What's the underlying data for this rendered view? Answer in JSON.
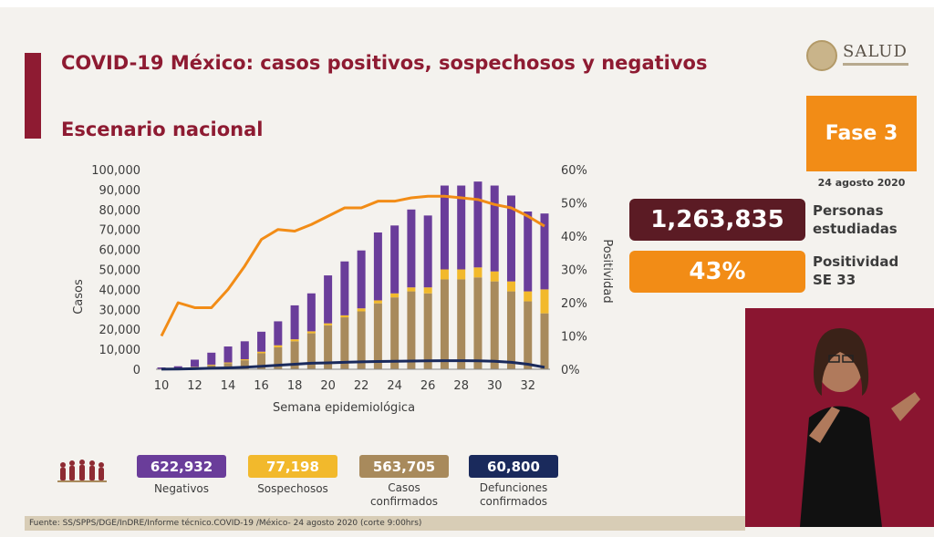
{
  "header": {
    "title": "COVID-19 México: casos positivos, sospechosos y negativos",
    "subtitle": "Escenario nacional"
  },
  "logo": {
    "name": "SALUD"
  },
  "phase": {
    "label": "Fase 3",
    "date": "24 agosto 2020"
  },
  "stats": [
    {
      "value": "1,263,835",
      "label_line1": "Personas",
      "label_line2": "estudiadas",
      "color": "#5b1b24"
    },
    {
      "value": "43%",
      "label_line1": "Positividad",
      "label_line2": "SE 33",
      "color": "#f28c16"
    }
  ],
  "legend": [
    {
      "value": "622,932",
      "label_line1": "Negativos",
      "label_line2": "",
      "color": "#6a3d9a"
    },
    {
      "value": "77,198",
      "label_line1": "Sospechosos",
      "label_line2": "",
      "color": "#f2b92c"
    },
    {
      "value": "563,705",
      "label_line1": "Casos",
      "label_line2": "confirmados",
      "color": "#a88a5c"
    },
    {
      "value": "60,800",
      "label_line1": "Defunciones",
      "label_line2": "confirmados",
      "color": "#1a2a5c"
    }
  ],
  "footer": {
    "source": "Fuente: SS/SPPS/DGE/InDRE/Informe técnico.COVID-19 /México- 24 agosto 2020 (corte 9:00hrs)"
  },
  "chart_data": {
    "type": "bar",
    "stacked": true,
    "xlabel": "Semana epidemiológica",
    "ylabel": "Casos",
    "y2label": "Positividad",
    "ylim": [
      0,
      100000
    ],
    "y2lim": [
      0,
      60
    ],
    "yticks": [
      "0",
      "10,000",
      "20,000",
      "30,000",
      "40,000",
      "50,000",
      "60,000",
      "70,000",
      "80,000",
      "90,000",
      "100,000"
    ],
    "y2ticks": [
      "0%",
      "10%",
      "20%",
      "30%",
      "40%",
      "50%",
      "60%"
    ],
    "xticks": [
      "10",
      "12",
      "14",
      "16",
      "18",
      "20",
      "22",
      "24",
      "26",
      "28",
      "30",
      "32"
    ],
    "x": [
      10,
      11,
      12,
      13,
      14,
      15,
      16,
      17,
      18,
      19,
      20,
      21,
      22,
      23,
      24,
      25,
      26,
      27,
      28,
      29,
      30,
      31,
      32,
      33
    ],
    "series": [
      {
        "name": "Casos confirmados",
        "color": "#a88a5c",
        "values": [
          150,
          500,
          1000,
          2000,
          3000,
          4500,
          8000,
          11000,
          14000,
          18000,
          22000,
          26000,
          29000,
          33000,
          36000,
          39000,
          38000,
          45000,
          45000,
          46000,
          44000,
          39000,
          34000,
          28000
        ]
      },
      {
        "name": "Sospechosos",
        "color": "#f2b92c",
        "values": [
          50,
          100,
          200,
          300,
          400,
          500,
          800,
          1000,
          1000,
          1000,
          1000,
          1000,
          1500,
          1500,
          2000,
          2000,
          3000,
          5000,
          5000,
          5000,
          5000,
          5000,
          5000,
          12000
        ]
      },
      {
        "name": "Negativos",
        "color": "#6a3d9a",
        "values": [
          700,
          900,
          3600,
          6000,
          8000,
          9000,
          10000,
          12000,
          17000,
          19000,
          24000,
          27000,
          29000,
          34000,
          34000,
          39000,
          36000,
          42000,
          42000,
          43000,
          43000,
          43000,
          40000,
          38000
        ]
      }
    ],
    "line_positividad": {
      "name": "Positividad",
      "color": "#f28c16",
      "values": [
        10,
        20,
        18.5,
        18.5,
        24,
        31,
        39,
        42,
        41.5,
        43.5,
        46,
        48.5,
        48.5,
        50.5,
        50.5,
        51.5,
        52,
        52,
        51.5,
        51,
        49.5,
        48.5,
        46,
        43
      ]
    },
    "line_defunciones": {
      "name": "Defunciones confirmadas",
      "color": "#1a2a5c",
      "values": [
        50,
        100,
        300,
        500,
        700,
        1000,
        1500,
        2000,
        2500,
        3000,
        3200,
        3500,
        3700,
        3900,
        4000,
        4100,
        4200,
        4300,
        4300,
        4200,
        4000,
        3500,
        2500,
        1000
      ]
    }
  }
}
